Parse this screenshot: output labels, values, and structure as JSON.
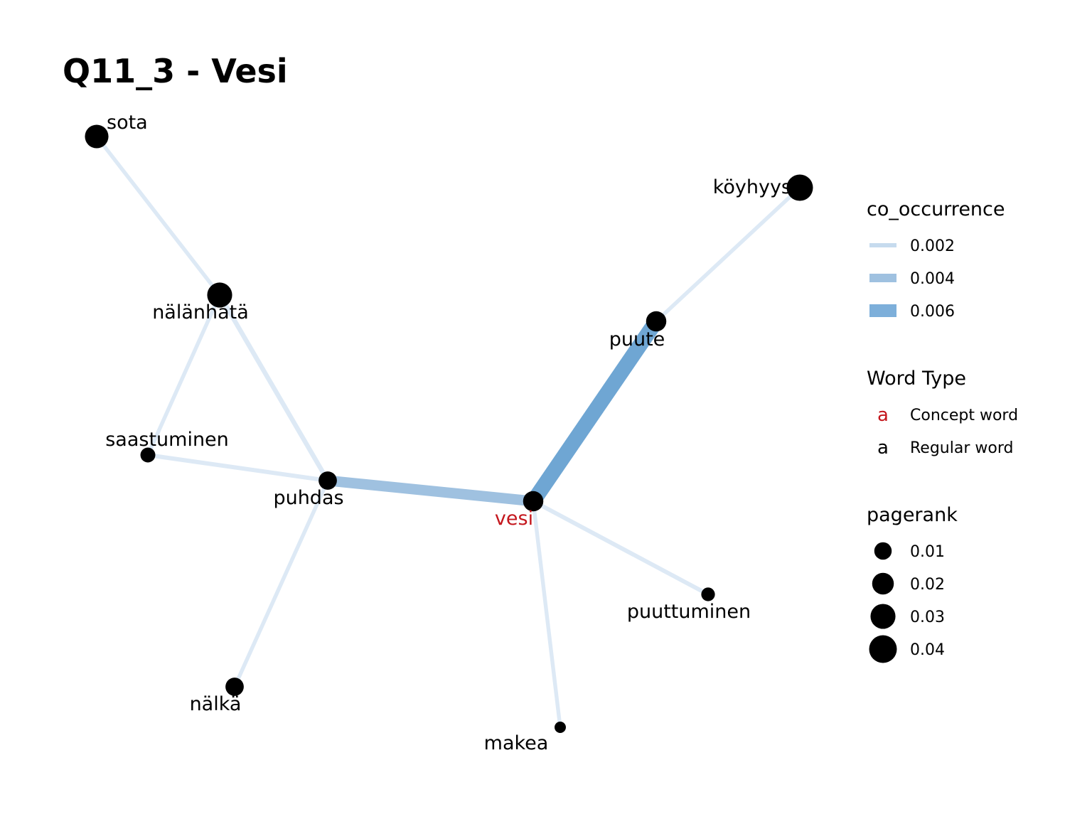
{
  "title": "Q11_3 - Vesi",
  "colors": {
    "concept": "#c4161c",
    "regular": "#000000",
    "edge_low": "#dde9f5",
    "edge_mid": "#9fc1e0",
    "edge_high": "#6fa6d3"
  },
  "nodes": [
    {
      "id": "sota",
      "label": "sota",
      "type": "regular",
      "pagerank": 0.03
    },
    {
      "id": "köyhyys",
      "label": "köyhyys",
      "type": "regular",
      "pagerank": 0.04
    },
    {
      "id": "nälänhätä",
      "label": "nälänhätä",
      "type": "regular",
      "pagerank": 0.035
    },
    {
      "id": "puute",
      "label": "puute",
      "type": "regular",
      "pagerank": 0.02
    },
    {
      "id": "saastuminen",
      "label": "saastuminen",
      "type": "regular",
      "pagerank": 0.008
    },
    {
      "id": "puhdas",
      "label": "puhdas",
      "type": "regular",
      "pagerank": 0.015
    },
    {
      "id": "vesi",
      "label": "vesi",
      "type": "concept",
      "pagerank": 0.02
    },
    {
      "id": "puuttuminen",
      "label": "puuttuminen",
      "type": "regular",
      "pagerank": 0.006
    },
    {
      "id": "nälkä",
      "label": "nälkä",
      "type": "regular",
      "pagerank": 0.015
    },
    {
      "id": "makea",
      "label": "makea",
      "type": "regular",
      "pagerank": 0.003
    }
  ],
  "edges": [
    {
      "source": "sota",
      "target": "nälänhätä",
      "co_occurrence": 0.0012
    },
    {
      "source": "nälänhätä",
      "target": "saastuminen",
      "co_occurrence": 0.0012
    },
    {
      "source": "nälänhätä",
      "target": "puhdas",
      "co_occurrence": 0.0016
    },
    {
      "source": "saastuminen",
      "target": "puhdas",
      "co_occurrence": 0.0014
    },
    {
      "source": "puhdas",
      "target": "vesi",
      "co_occurrence": 0.0045
    },
    {
      "source": "vesi",
      "target": "puute",
      "co_occurrence": 0.0068
    },
    {
      "source": "puute",
      "target": "köyhyys",
      "co_occurrence": 0.0012
    },
    {
      "source": "vesi",
      "target": "puuttuminen",
      "co_occurrence": 0.0014
    },
    {
      "source": "vesi",
      "target": "makea",
      "co_occurrence": 0.0012
    },
    {
      "source": "puhdas",
      "target": "nälkä",
      "co_occurrence": 0.0012
    }
  ],
  "legend": {
    "co_occurrence": {
      "title": "co_occurrence",
      "items": [
        {
          "label": "0.002",
          "value": 0.002,
          "color": "#c6dbee"
        },
        {
          "label": "0.004",
          "value": 0.004,
          "color": "#9fc1e0"
        },
        {
          "label": "0.006",
          "value": 0.006,
          "color": "#7dafda"
        }
      ]
    },
    "word_type": {
      "title": "Word Type",
      "items": [
        {
          "glyph": "a",
          "label": "Concept word",
          "type": "concept"
        },
        {
          "glyph": "a",
          "label": "Regular word",
          "type": "regular"
        }
      ]
    },
    "pagerank": {
      "title": "pagerank",
      "items": [
        {
          "label": "0.01",
          "value": 0.01
        },
        {
          "label": "0.02",
          "value": 0.02
        },
        {
          "label": "0.03",
          "value": 0.03
        },
        {
          "label": "0.04",
          "value": 0.04
        }
      ]
    }
  }
}
